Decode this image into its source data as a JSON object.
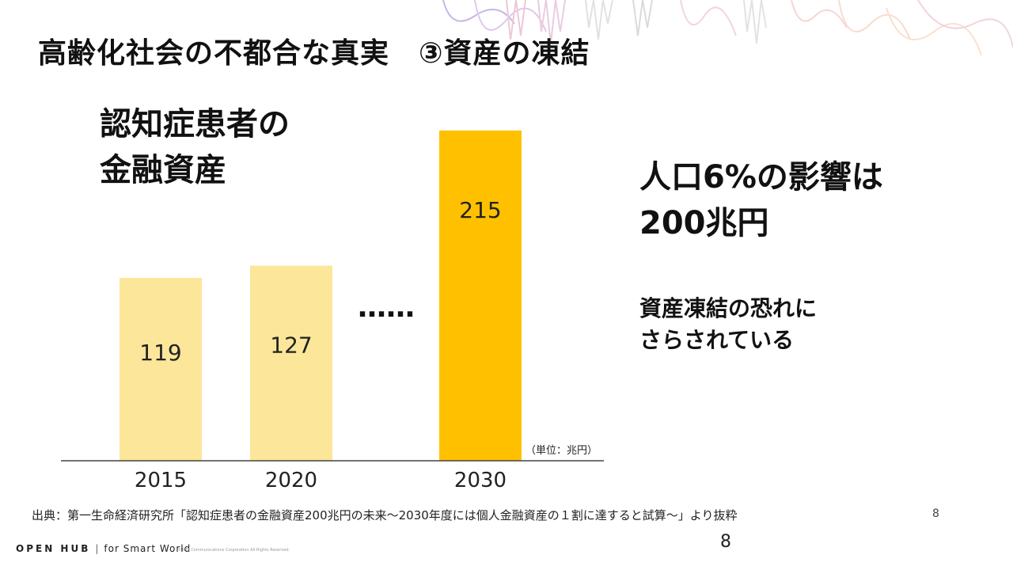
{
  "page": {
    "title": "高齢化社会の不都合な真実　③資産の凍結",
    "page_number_small": "8",
    "page_number": "8"
  },
  "chart_title": {
    "line1": "認知症患者の",
    "line2": "金融資産"
  },
  "chart_data": {
    "type": "bar",
    "categories": [
      "2015",
      "2020",
      "2030"
    ],
    "values": [
      119,
      127,
      215
    ],
    "value_labels": [
      "119",
      "127",
      "215"
    ],
    "gap_marker": "……",
    "unit": "（単位：兆円）",
    "ylim": [
      0,
      235
    ],
    "colors": [
      "#fce699",
      "#fce699",
      "#ffc000"
    ]
  },
  "headline": {
    "line1": "人口6%の影響は",
    "line2": "200兆円"
  },
  "subline": {
    "line1": "資産凍結の恐れに",
    "line2": "さらされている"
  },
  "source": "出典：第一生命経済研究所「認知症患者の金融資産200兆円の未来～2030年度には個人金融資産の１割に達すると試算～」より抜粋",
  "footer": {
    "logo": "OPEN HUB",
    "separator": "|",
    "tagline": "for Smart World",
    "copyright": "©NTT Communications Corporation All Rights Reserved."
  },
  "colors": {
    "bar_light": "#fce699",
    "bar_highlight": "#ffc000",
    "axis": "#444444"
  }
}
